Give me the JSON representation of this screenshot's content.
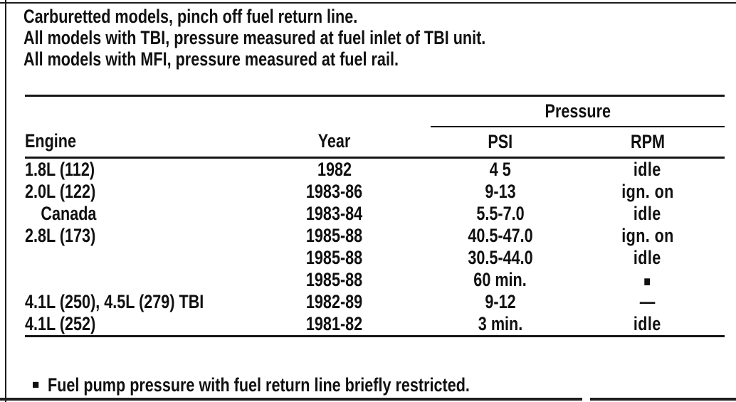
{
  "intro": {
    "lines": [
      "Carburetted models, pinch off fuel return line.",
      "All models with TBI, pressure measured at fuel inlet of TBI unit.",
      "All models with MFI, pressure measured at fuel rail."
    ]
  },
  "table": {
    "group_header": "Pressure",
    "columns": {
      "engine": "Engine",
      "year": "Year",
      "psi": "PSI",
      "rpm": "RPM"
    },
    "rows": [
      {
        "engine": "1.8L (112)",
        "year": "1982",
        "psi": "4 5",
        "rpm": "idle"
      },
      {
        "engine": "2.0L (122)",
        "year": "1983-86",
        "psi": "9-13",
        "rpm": "ign. on"
      },
      {
        "engine": "Canada",
        "year": "1983-84",
        "psi": "5.5-7.0",
        "rpm": "idle"
      },
      {
        "engine": "2.8L (173)",
        "year": "1985-88",
        "psi": "40.5-47.0",
        "rpm": "ign. on"
      },
      {
        "engine": "",
        "year": "1985-88",
        "psi": "30.5-44.0",
        "rpm": "idle"
      },
      {
        "engine": "",
        "year": "1985-88",
        "psi": "60 min.",
        "rpm": "■"
      },
      {
        "engine": "4.1L (250), 4.5L (279) TBI",
        "year": "1982-89",
        "psi": "9-12",
        "rpm": "—"
      },
      {
        "engine": "4.1L (252)",
        "year": "1981-82",
        "psi": "3 min.",
        "rpm": "idle"
      }
    ]
  },
  "footnote": {
    "marker": "■",
    "text": "Fuel pump pressure with fuel return line briefly restricted."
  },
  "colors": {
    "ink": "#101010",
    "paper": "#ffffff"
  }
}
